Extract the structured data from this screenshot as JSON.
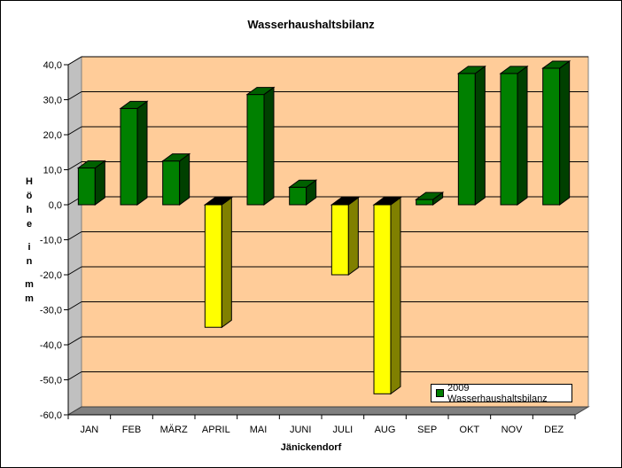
{
  "chart_data": {
    "type": "bar",
    "title": "Wasserhaushaltsbilanz",
    "xlabel": "Jänickendorf",
    "ylabel": "Höhe in mm",
    "categories": [
      "JAN",
      "FEB",
      "MÄRZ",
      "APRIL",
      "MAI",
      "JUNI",
      "JULI",
      "AUG",
      "SEP",
      "OKT",
      "NOV",
      "DEZ"
    ],
    "series": [
      {
        "name": "2009 Wasserhaushaltsbilanz",
        "values": [
          10.5,
          27.5,
          12.5,
          -35.0,
          31.5,
          5.0,
          -20.0,
          -54.0,
          1.5,
          37.5,
          37.5,
          39.0
        ]
      }
    ],
    "ylim": [
      -60,
      40
    ],
    "yticks": [
      "-60,0",
      "-50,0",
      "-40,0",
      "-30,0",
      "-20,0",
      "-10,0",
      "0,0",
      "10,0",
      "20,0",
      "30,0",
      "40,0"
    ],
    "grid": true,
    "legend_position": "bottom-right",
    "colors": {
      "positive": "#008000",
      "negative": "#ffff00",
      "plot_background": "#ffcc99"
    }
  }
}
